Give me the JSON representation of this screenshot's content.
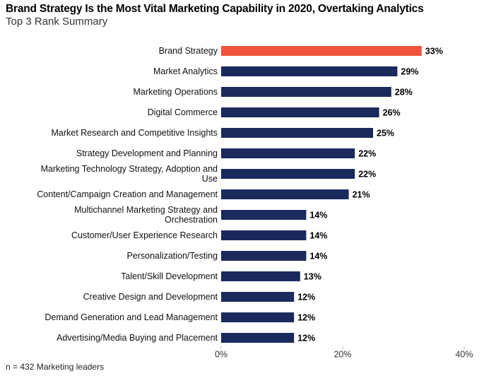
{
  "chart_data": {
    "type": "bar",
    "orientation": "horizontal",
    "title": "Brand Strategy Is the Most Vital Marketing Capability in 2020, Overtaking Analytics",
    "subtitle": "Top 3 Rank Summary",
    "note": "n = 432 Marketing leaders",
    "categories": [
      "Brand Strategy",
      "Market Analytics",
      "Marketing Operations",
      "Digital Commerce",
      "Market Research and Competitive Insights",
      "Strategy Development and Planning",
      "Marketing Technology Strategy, Adoption and Use",
      "Content/Campaign Creation and Management",
      "Multichannel Marketing Strategy and Orchestration",
      "Customer/User Experience Research",
      "Personalization/Testing",
      "Talent/Skill Development",
      "Creative Design and Development",
      "Demand Generation and Lead Management",
      "Advertising/Media Buying and Placement"
    ],
    "values": [
      33,
      29,
      28,
      26,
      25,
      22,
      22,
      21,
      14,
      14,
      14,
      13,
      12,
      12,
      12
    ],
    "value_labels": [
      "33%",
      "29%",
      "28%",
      "26%",
      "25%",
      "22%",
      "22%",
      "21%",
      "14%",
      "14%",
      "14%",
      "13%",
      "12%",
      "12%",
      "12%"
    ],
    "colors": [
      "#f1553a",
      "#1b2a5c",
      "#1b2a5c",
      "#1b2a5c",
      "#1b2a5c",
      "#1b2a5c",
      "#1b2a5c",
      "#1b2a5c",
      "#1b2a5c",
      "#1b2a5c",
      "#1b2a5c",
      "#1b2a5c",
      "#1b2a5c",
      "#1b2a5c",
      "#1b2a5c"
    ],
    "xlim": [
      0,
      40
    ],
    "xticks": [
      {
        "value": 0,
        "label": "0%"
      },
      {
        "value": 20,
        "label": "20%"
      },
      {
        "value": 40,
        "label": "40%"
      }
    ],
    "grid": false
  }
}
